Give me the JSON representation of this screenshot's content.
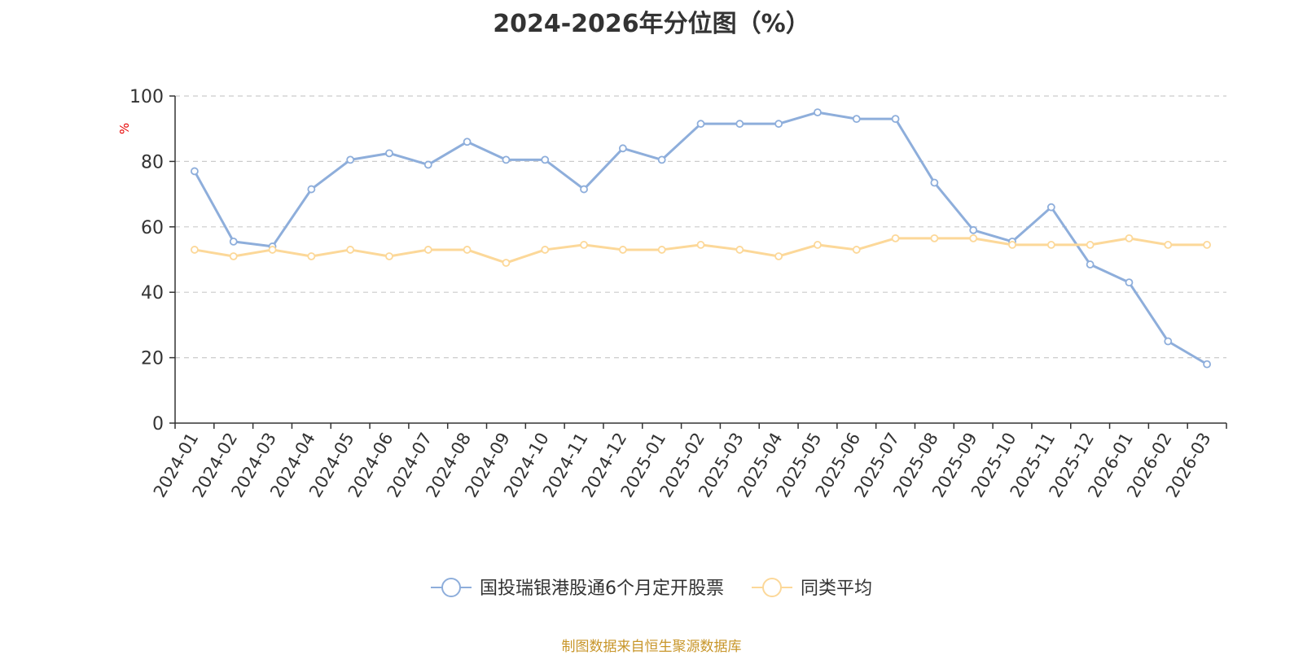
{
  "chart_data": {
    "type": "line",
    "title": "2024-2026年分位图（%）",
    "ylabel": "%",
    "xlabel": "",
    "ylim": [
      0,
      100
    ],
    "yticks": [
      0,
      20,
      40,
      60,
      80,
      100
    ],
    "grid": "horizontal-dashed",
    "legend_position": "bottom",
    "categories": [
      "2024-01",
      "2024-02",
      "2024-03",
      "2024-04",
      "2024-05",
      "2024-06",
      "2024-07",
      "2024-08",
      "2024-09",
      "2024-10",
      "2024-11",
      "2024-12",
      "2025-01",
      "2025-02",
      "2025-03",
      "2025-04",
      "2025-05",
      "2025-06",
      "2025-07",
      "2025-08",
      "2025-09",
      "2025-10",
      "2025-11",
      "2025-12",
      "2026-01",
      "2026-02",
      "2026-03"
    ],
    "series": [
      {
        "name": "国投瑞银港股通6个月定开股票",
        "color": "#8eaedb",
        "values": [
          77,
          55.5,
          54,
          71.5,
          80.5,
          82.5,
          79,
          86,
          80.5,
          80.5,
          71.5,
          84,
          80.5,
          91.5,
          91.5,
          91.5,
          95,
          93,
          93,
          73.5,
          59,
          55.5,
          66,
          48.5,
          43,
          25,
          18
        ]
      },
      {
        "name": "同类平均",
        "color": "#fcd899",
        "values": [
          53,
          51,
          53,
          51,
          53,
          51,
          53,
          53,
          49,
          53,
          54.5,
          53,
          53,
          54.5,
          53,
          51,
          54.5,
          53,
          56.5,
          56.5,
          56.5,
          54.5,
          54.5,
          54.5,
          56.5,
          54.5,
          54.5
        ]
      }
    ]
  },
  "footer": {
    "source": "制图数据来自恒生聚源数据库"
  }
}
